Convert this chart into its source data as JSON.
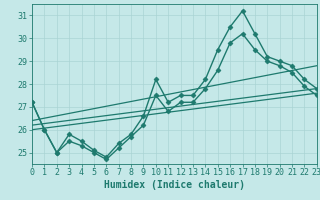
{
  "xlabel": "Humidex (Indice chaleur)",
  "xlim": [
    0,
    23
  ],
  "ylim": [
    24.5,
    31.5
  ],
  "yticks": [
    25,
    26,
    27,
    28,
    29,
    30,
    31
  ],
  "xticks": [
    0,
    1,
    2,
    3,
    4,
    5,
    6,
    7,
    8,
    9,
    10,
    11,
    12,
    13,
    14,
    15,
    16,
    17,
    18,
    19,
    20,
    21,
    22,
    23
  ],
  "bg_color": "#c5e8e8",
  "grid_color": "#aad4d4",
  "line_color": "#1e7a6e",
  "lines": [
    {
      "x": [
        0,
        1,
        2,
        3,
        4,
        5,
        6,
        7,
        8,
        9,
        10,
        11,
        12,
        13,
        14,
        15,
        16,
        17,
        18,
        19,
        20,
        21,
        22,
        23
      ],
      "y": [
        27.2,
        26.0,
        25.0,
        25.8,
        25.5,
        25.1,
        24.8,
        25.4,
        25.8,
        26.6,
        28.2,
        27.2,
        27.5,
        27.5,
        28.2,
        29.5,
        30.5,
        31.2,
        30.2,
        29.2,
        29.0,
        28.8,
        28.2,
        27.8
      ],
      "marker": "D",
      "markersize": 2.5,
      "linewidth": 1.0
    },
    {
      "x": [
        0,
        1,
        2,
        3,
        4,
        5,
        6,
        7,
        8,
        9,
        10,
        11,
        12,
        13,
        14,
        15,
        16,
        17,
        18,
        19,
        20,
        21,
        22,
        23
      ],
      "y": [
        27.2,
        26.0,
        25.0,
        25.5,
        25.3,
        25.0,
        24.7,
        25.2,
        25.7,
        26.2,
        27.5,
        26.8,
        27.2,
        27.2,
        27.8,
        28.6,
        29.8,
        30.2,
        29.5,
        29.0,
        28.8,
        28.5,
        27.9,
        27.5
      ],
      "marker": "D",
      "markersize": 2.5,
      "linewidth": 1.0
    },
    {
      "x": [
        0,
        23
      ],
      "y": [
        26.0,
        27.6
      ],
      "marker": null,
      "markersize": 0,
      "linewidth": 0.9
    },
    {
      "x": [
        0,
        23
      ],
      "y": [
        26.2,
        27.8
      ],
      "marker": null,
      "markersize": 0,
      "linewidth": 0.9
    },
    {
      "x": [
        0,
        23
      ],
      "y": [
        26.4,
        28.8
      ],
      "marker": null,
      "markersize": 0,
      "linewidth": 0.9
    }
  ],
  "tick_fontsize": 6,
  "xlabel_fontsize": 7
}
